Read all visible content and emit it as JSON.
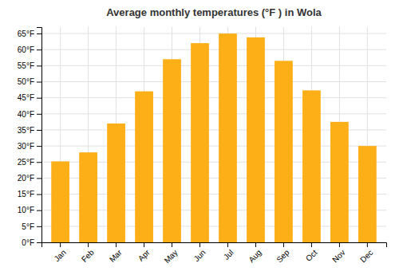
{
  "chart_data": {
    "type": "bar",
    "title": "Average monthly temperatures (°F ) in Wola",
    "categories": [
      "Jan",
      "Feb",
      "Mar",
      "Apr",
      "May",
      "Jun",
      "Jul",
      "Aug",
      "Sep",
      "Oct",
      "Nov",
      "Dec"
    ],
    "values": [
      25.2,
      28.0,
      37.0,
      47.0,
      57.0,
      62.0,
      65.0,
      63.8,
      56.5,
      47.3,
      37.5,
      30.0
    ],
    "color": "#FCAF17",
    "ylim": [
      0,
      67
    ],
    "yticks": [
      {
        "value": 0,
        "label": "0°F"
      },
      {
        "value": 5,
        "label": "5°F"
      },
      {
        "value": 10,
        "label": "10°F"
      },
      {
        "value": 15,
        "label": "15°F"
      },
      {
        "value": 20,
        "label": "20°F"
      },
      {
        "value": 25,
        "label": "25°F"
      },
      {
        "value": 30,
        "label": "30°F"
      },
      {
        "value": 35,
        "label": "35°F"
      },
      {
        "value": 40,
        "label": "40°F"
      },
      {
        "value": 45,
        "label": "45°F"
      },
      {
        "value": 50,
        "label": "50°F"
      },
      {
        "value": 55,
        "label": "55°F"
      },
      {
        "value": 60,
        "label": "60°F"
      },
      {
        "value": 65,
        "label": "65°F"
      }
    ],
    "grid": true
  }
}
